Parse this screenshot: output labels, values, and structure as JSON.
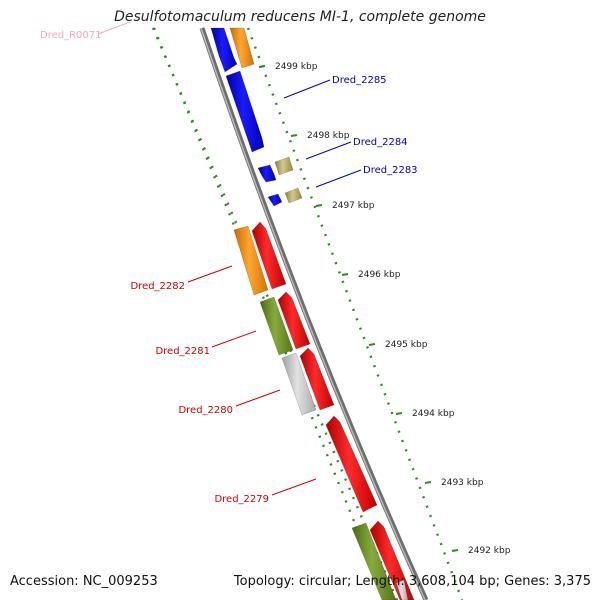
{
  "title": "Desulfotomaculum reducens MI-1, complete genome",
  "footer": {
    "accession": "Accession: NC_009253",
    "summary": "Topology: circular; Length: 3,608,104 bp; Genes: 3,375"
  },
  "colors": {
    "backbone": "#8c8c8c",
    "tick_dots": "#2e8b22",
    "blue": "#1010e8",
    "orange": "#f59412",
    "khaki": "#b8ae6a",
    "red": "#f01010",
    "olive": "#6e9428",
    "gray": "#c4c4c4",
    "blue_label": "#0000c8",
    "red_label": "#d00000",
    "pink_label": "#f4a6c4"
  },
  "ticks": [
    {
      "label": "2499 kbp"
    },
    {
      "label": "2498 kbp"
    },
    {
      "label": "2497 kbp"
    },
    {
      "label": "2496 kbp"
    },
    {
      "label": "2495 kbp"
    },
    {
      "label": "2494 kbp"
    },
    {
      "label": "2493 kbp"
    },
    {
      "label": "2492 kbp"
    }
  ],
  "genes": [
    {
      "label": "Dred_R0071",
      "color": "pink"
    },
    {
      "label": "Dred_2285",
      "color": "blue"
    },
    {
      "label": "Dred_2284",
      "color": "blue"
    },
    {
      "label": "Dred_2283",
      "color": "blue"
    },
    {
      "label": "Dred_2282",
      "color": "red"
    },
    {
      "label": "Dred_2281",
      "color": "red"
    },
    {
      "label": "Dred_2280",
      "color": "red"
    },
    {
      "label": "Dred_2279",
      "color": "red"
    }
  ]
}
